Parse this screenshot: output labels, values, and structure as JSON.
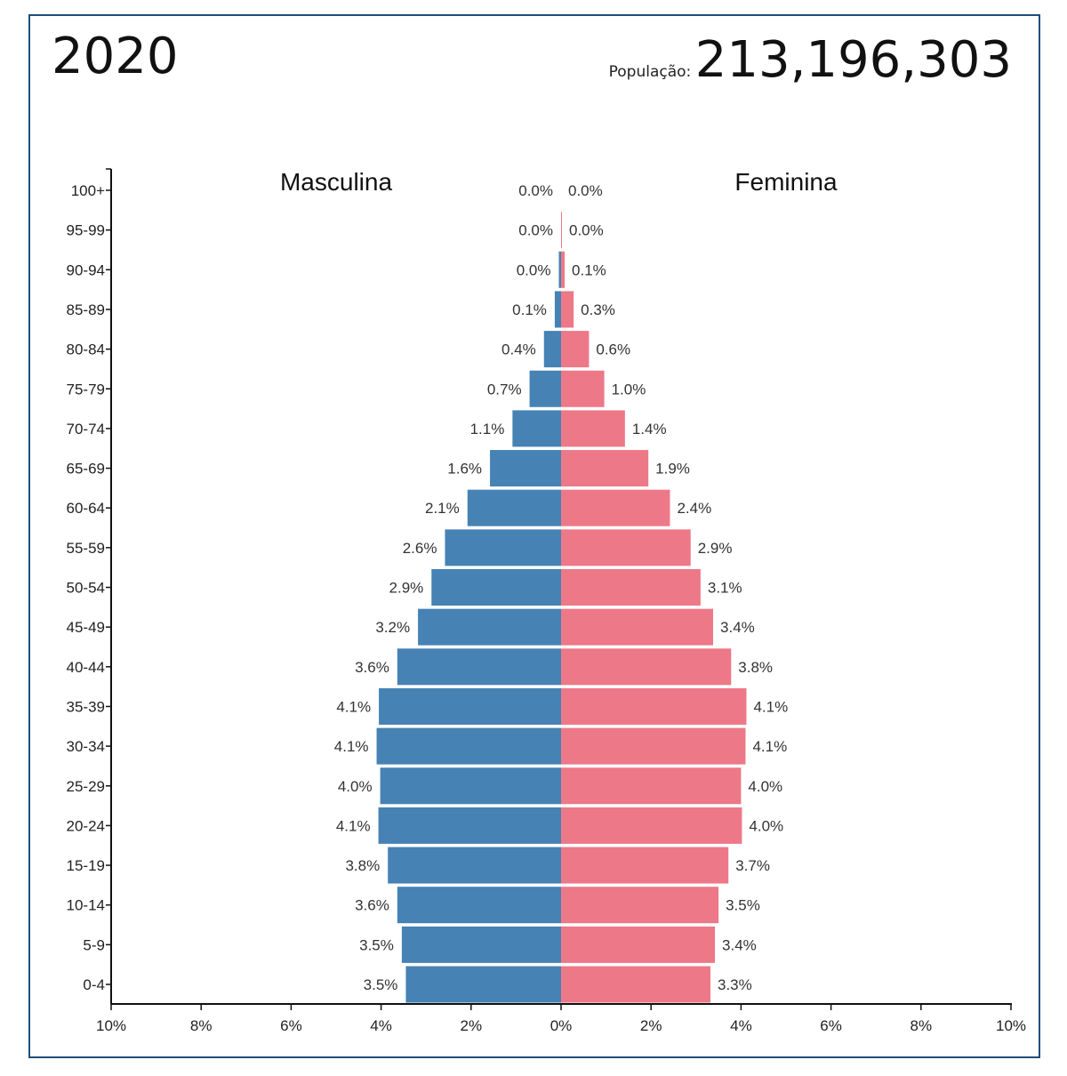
{
  "header": {
    "year": "2020",
    "population_label": "População:",
    "population_value": "213,196,303"
  },
  "colors": {
    "male": "#4682b4",
    "female": "#ed7887",
    "frame": "#1f4e79"
  },
  "chart_data": {
    "type": "bar",
    "orientation": "horizontal",
    "title": "",
    "xlabel": "",
    "ylabel": "",
    "xlim": [
      -10,
      10
    ],
    "x_unit": "%",
    "x_ticks": [
      "10%",
      "8%",
      "6%",
      "4%",
      "2%",
      "0%",
      "2%",
      "4%",
      "6%",
      "8%",
      "10%"
    ],
    "grid": false,
    "categories": [
      "100+",
      "95-99",
      "90-94",
      "85-89",
      "80-84",
      "75-79",
      "70-74",
      "65-69",
      "60-64",
      "55-59",
      "50-54",
      "45-49",
      "40-44",
      "35-39",
      "30-34",
      "25-29",
      "20-24",
      "15-19",
      "10-14",
      "5-9",
      "0-4"
    ],
    "series": [
      {
        "name": "Masculina",
        "values": [
          0.0,
          0.0,
          0.05,
          0.14,
          0.38,
          0.7,
          1.08,
          1.58,
          2.08,
          2.58,
          2.88,
          3.18,
          3.64,
          4.05,
          4.1,
          4.02,
          4.06,
          3.85,
          3.64,
          3.54,
          3.45
        ],
        "labels": [
          "0.0%",
          "0.0%",
          "0.0%",
          "0.1%",
          "0.4%",
          "0.7%",
          "1.1%",
          "1.6%",
          "2.1%",
          "2.6%",
          "2.9%",
          "3.2%",
          "3.6%",
          "4.1%",
          "4.1%",
          "4.0%",
          "4.1%",
          "3.8%",
          "3.6%",
          "3.5%",
          "3.5%"
        ]
      },
      {
        "name": "Feminina",
        "values": [
          0.0,
          0.02,
          0.08,
          0.28,
          0.62,
          0.96,
          1.42,
          1.94,
          2.42,
          2.88,
          3.1,
          3.38,
          3.78,
          4.12,
          4.1,
          4.0,
          4.02,
          3.72,
          3.5,
          3.42,
          3.32
        ],
        "labels": [
          "0.0%",
          "0.0%",
          "0.1%",
          "0.3%",
          "0.6%",
          "1.0%",
          "1.4%",
          "1.9%",
          "2.4%",
          "2.9%",
          "3.1%",
          "3.4%",
          "3.8%",
          "4.1%",
          "4.1%",
          "4.0%",
          "4.0%",
          "3.7%",
          "3.5%",
          "3.4%",
          "3.3%"
        ]
      }
    ]
  }
}
